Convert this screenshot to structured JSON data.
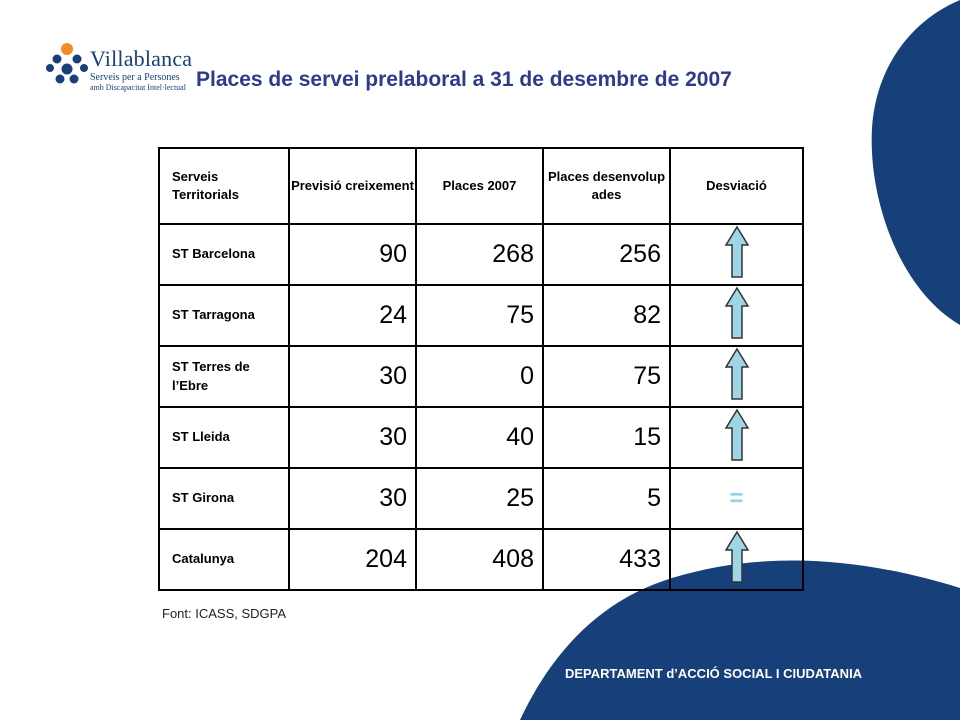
{
  "logo": {
    "name": "Villablanca",
    "subtitle_line1": "Serveis per a Persones",
    "subtitle_line2": "amb Discapacitat Intel·lectual"
  },
  "title": "Places de servei prelaboral a 31 de desembre de 2007",
  "table": {
    "headers": [
      "Serveis Territorials",
      "Previsió creixement",
      "Places 2007",
      "Places desenvolup ades",
      "Desviació"
    ],
    "rows": [
      {
        "name": "ST Barcelona",
        "previsio": "90",
        "places_2007": "268",
        "desenvolupades": "256",
        "desviacio": "up-arrow"
      },
      {
        "name": "ST Tarragona",
        "previsio": "24",
        "places_2007": "75",
        "desenvolupades": "82",
        "desviacio": "up-arrow"
      },
      {
        "name": "ST Terres de l’Ebre",
        "previsio": "30",
        "places_2007": "0",
        "desenvolupades": "75",
        "desviacio": "up-arrow"
      },
      {
        "name": "ST Lleida",
        "previsio": "30",
        "places_2007": "40",
        "desenvolupades": "15",
        "desviacio": "up-arrow"
      },
      {
        "name": "ST Girona",
        "previsio": "30",
        "places_2007": "25",
        "desenvolupades": "5",
        "desviacio": "="
      },
      {
        "name": "Catalunya",
        "previsio": "204",
        "places_2007": "408",
        "desenvolupades": "433",
        "desviacio": "up-arrow"
      }
    ]
  },
  "source": "Font: ICASS, SDGPA",
  "footer": "DEPARTAMENT d’ACCIÓ SOCIAL I CIUDATANIA",
  "colors": {
    "brand_blue": "#17407a",
    "title_blue": "#2e3a8c",
    "logo_orange": "#f28c28",
    "arrow_fill": "#9fd6e6",
    "equal_sign": "#8fd1e4"
  }
}
